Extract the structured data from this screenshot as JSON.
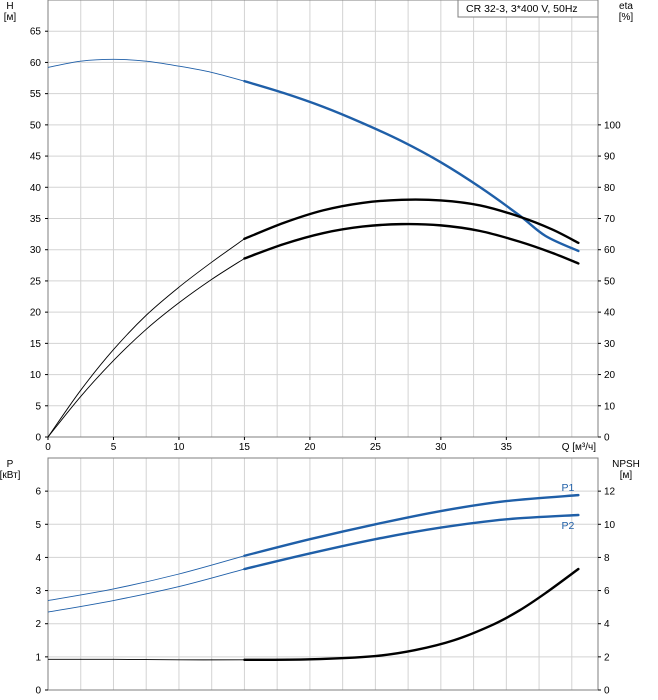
{
  "chart_data": [
    {
      "type": "line",
      "legend": "CR 32-3, 3*400 V, 50Hz",
      "legend_position": "top-right",
      "grid": true,
      "xlabel": "Q [м³/ч]",
      "xlim": [
        0,
        42
      ],
      "x_ticks": [
        0,
        5,
        10,
        15,
        20,
        25,
        30,
        35
      ],
      "y_left": {
        "label_line1": "H",
        "label_line2": "[м]",
        "lim": [
          0,
          70
        ],
        "ticks": [
          0,
          5,
          10,
          15,
          20,
          25,
          30,
          35,
          40,
          45,
          50,
          55,
          60,
          65
        ]
      },
      "y_right": {
        "label_line1": "eta",
        "label_line2": "[%]",
        "lim": [
          0,
          140
        ],
        "ticks": [
          0,
          10,
          20,
          30,
          40,
          50,
          60,
          70,
          80,
          90,
          100
        ]
      },
      "series": [
        {
          "axis": "left",
          "color": "#1f5fa8",
          "thin": {
            "x": [
              0,
              2.5,
              5,
              7.5,
              10,
              12.5,
              15
            ],
            "y": [
              59.2,
              60.2,
              60.5,
              60.2,
              59.4,
              58.4,
              57.0
            ]
          },
          "thick": {
            "x": [
              15,
              18,
              21,
              24,
              27,
              30,
              33,
              36,
              38,
              40.5
            ],
            "y": [
              57.0,
              55.1,
              52.9,
              50.3,
              47.4,
              44.0,
              40.0,
              35.5,
              32.2,
              29.8
            ]
          }
        },
        {
          "axis": "right",
          "color": "#000000",
          "thin": {
            "x": [
              0,
              2.5,
              5,
              7.5,
              10,
              12.5,
              15
            ],
            "y": [
              0,
              15,
              28,
              39,
              48,
              56,
              63.5
            ]
          },
          "thick": {
            "x": [
              15,
              18,
              21,
              24,
              27,
              30,
              33,
              36,
              38.5,
              40.5
            ],
            "y": [
              63.5,
              68.6,
              72.6,
              75.0,
              76.0,
              75.8,
              74.2,
              70.6,
              66.5,
              62.2
            ]
          }
        },
        {
          "axis": "right",
          "color": "#000000",
          "thin": {
            "x": [
              0,
              2.5,
              5,
              7.5,
              10,
              12.5,
              15
            ],
            "y": [
              0,
              13,
              24.5,
              34.5,
              43,
              50.5,
              57.2
            ]
          },
          "thick": {
            "x": [
              15,
              18,
              21,
              24,
              27,
              30,
              33,
              36,
              38.5,
              40.5
            ],
            "y": [
              57.2,
              61.8,
              65.3,
              67.4,
              68.2,
              67.8,
              66.0,
              62.6,
              59.0,
              55.6
            ]
          }
        }
      ]
    },
    {
      "type": "line",
      "grid": true,
      "xlim": [
        0,
        42
      ],
      "y_left": {
        "label_line1": "P",
        "label_line2": "[кВт]",
        "lim": [
          0,
          7
        ],
        "ticks": [
          0,
          1,
          2,
          3,
          4,
          5,
          6
        ]
      },
      "y_right": {
        "label_line1": "NPSH",
        "label_line2": "[м]",
        "lim": [
          0,
          14
        ],
        "ticks": [
          0,
          2,
          4,
          6,
          8,
          10,
          12
        ]
      },
      "series": [
        {
          "name": "P1",
          "axis": "left",
          "color": "#1f5fa8",
          "thin": {
            "x": [
              0,
              5,
              10,
              15
            ],
            "y": [
              2.7,
              3.05,
              3.5,
              4.05
            ]
          },
          "thick": {
            "x": [
              15,
              20,
              25,
              30,
              35,
              40.5
            ],
            "y": [
              4.05,
              4.55,
              5.0,
              5.4,
              5.7,
              5.88
            ]
          }
        },
        {
          "name": "P2",
          "axis": "left",
          "color": "#1f5fa8",
          "thin": {
            "x": [
              0,
              5,
              10,
              15
            ],
            "y": [
              2.35,
              2.7,
              3.12,
              3.65
            ]
          },
          "thick": {
            "x": [
              15,
              20,
              25,
              30,
              35,
              40.5
            ],
            "y": [
              3.65,
              4.12,
              4.55,
              4.9,
              5.15,
              5.28
            ]
          }
        },
        {
          "axis": "right",
          "color": "#000000",
          "thin": {
            "x": [
              0,
              5,
              10,
              15
            ],
            "y": [
              1.85,
              1.85,
              1.82,
              1.82
            ]
          },
          "thick": {
            "x": [
              15,
              20,
              25,
              28,
              31,
              34,
              36,
              38,
              40.5
            ],
            "y": [
              1.82,
              1.85,
              2.05,
              2.4,
              3.0,
              3.95,
              4.8,
              5.85,
              7.3
            ]
          }
        }
      ]
    }
  ]
}
